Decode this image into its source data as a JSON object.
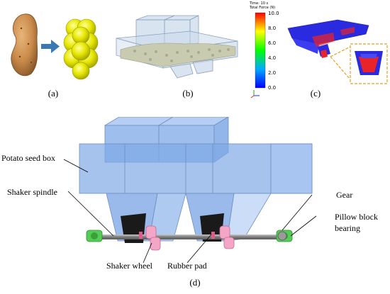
{
  "captions": {
    "a": "(a)",
    "b": "(b)",
    "c": "(c)",
    "d": "(d)"
  },
  "panel_c": {
    "time_label": "Time: 10 s",
    "legend_title": "Total Force (N)",
    "scale_values": [
      "10.0",
      "8.0",
      "6.0",
      "4.0",
      "2.0",
      "0.0"
    ]
  },
  "panel_d": {
    "labels": {
      "seed_box": "Potato seed box",
      "shaker_spindle": "Shaker spindle",
      "shaker_wheel": "Shaker wheel",
      "rubber_pad": "Rubber pad",
      "gear": "Gear",
      "pillow_block": "Pillow block\nbearing"
    }
  },
  "colors": {
    "potato_real": "#c98a4a",
    "potato_model": "#e6e600",
    "arrow": "#3a78b5",
    "box_fill": "#7fa9e6",
    "box_top": "#a9c6f2",
    "bearing": "#55cc55",
    "wheel": "#f4a6c6",
    "shaft": "#8a8a8a",
    "sim_blue": "#2a2ae0",
    "sim_red": "#e8232a",
    "callout": "#e8a020"
  },
  "icons": [
    "axis-triad-icon"
  ]
}
